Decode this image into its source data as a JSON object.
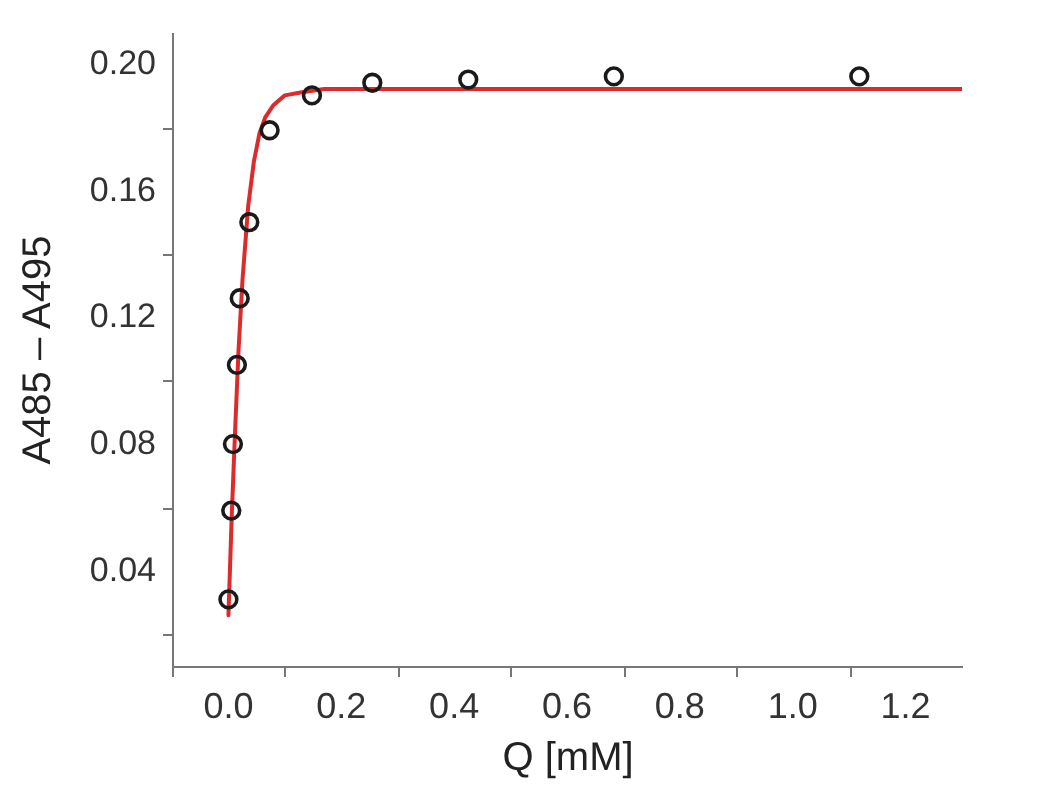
{
  "chart_data": {
    "type": "scatter",
    "xlabel": "Q [mM]",
    "ylabel": "A485 – A495",
    "xlim": [
      -0.1,
      1.3
    ],
    "ylim": [
      0.01,
      0.21
    ],
    "xticks": [
      {
        "value": -0.1,
        "label": null
      },
      {
        "value": 0,
        "label": "0.0"
      },
      {
        "value": 0.1,
        "label": null
      },
      0.2,
      {
        "value": 0.3,
        "label": null
      },
      0.4,
      {
        "value": 0.5,
        "label": null
      },
      0.6,
      {
        "value": 0.7,
        "label": null
      },
      0.8,
      {
        "value": 0.9,
        "label": null
      },
      {
        "value": 1,
        "label": "1.0"
      },
      {
        "value": 1.1,
        "label": null
      },
      1.2
    ],
    "yticks": [
      {
        "value": 0.02,
        "label": null
      },
      0.04,
      {
        "value": 0.06,
        "label": null
      },
      0.08,
      {
        "value": 0.1,
        "label": null
      },
      0.12,
      {
        "value": 0.14,
        "label": null
      },
      0.16,
      {
        "value": 0.18,
        "label": null
      },
      {
        "value": 0.2,
        "label": "0.20"
      }
    ],
    "grid": false,
    "series": [
      {
        "type": "line",
        "color": "#dd2a2a",
        "x": [
          0.0,
          0.006,
          0.012,
          0.018,
          0.025,
          0.035,
          0.045,
          0.055,
          0.065,
          0.08,
          0.1,
          0.13,
          0.17,
          0.25,
          0.4,
          0.7,
          1.0,
          1.3
        ],
        "values": [
          0.026,
          0.058,
          0.085,
          0.11,
          0.132,
          0.155,
          0.169,
          0.178,
          0.183,
          0.187,
          0.19,
          0.191,
          0.192,
          0.192,
          0.192,
          0.192,
          0.192,
          0.192
        ]
      },
      {
        "color": "#1a1a1a",
        "marker": "circle",
        "x": [
          0.0,
          0.005,
          0.008,
          0.015,
          0.02,
          0.037,
          0.073,
          0.148,
          0.255,
          0.425,
          0.683,
          1.118
        ],
        "values": [
          0.031,
          0.059,
          0.08,
          0.105,
          0.126,
          0.15,
          0.179,
          0.19,
          0.194,
          0.195,
          0.196,
          0.196
        ]
      }
    ]
  }
}
